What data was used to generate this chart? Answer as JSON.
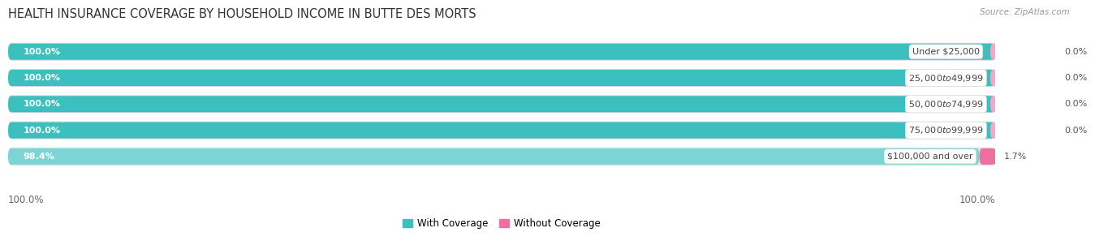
{
  "title": "HEALTH INSURANCE COVERAGE BY HOUSEHOLD INCOME IN BUTTE DES MORTS",
  "source": "Source: ZipAtlas.com",
  "categories": [
    "Under $25,000",
    "$25,000 to $49,999",
    "$50,000 to $74,999",
    "$75,000 to $99,999",
    "$100,000 and over"
  ],
  "with_coverage": [
    100.0,
    100.0,
    100.0,
    100.0,
    98.4
  ],
  "without_coverage": [
    0.0,
    0.0,
    0.0,
    0.0,
    1.7
  ],
  "color_with": "#3bbfbf",
  "color_without": "#f06fa0",
  "color_with_light": "#7dd4d4",
  "bar_bg": "#e6e6e6",
  "bar_bg_outer": "#d8d8d8",
  "title_fontsize": 10.5,
  "label_fontsize": 8.0,
  "tick_fontsize": 8.5,
  "legend_fontsize": 8.5,
  "bottom_left_label": "100.0%",
  "bottom_right_label": "100.0%",
  "fig_bg": "#ffffff",
  "ax_bg": "#f5f5f5"
}
